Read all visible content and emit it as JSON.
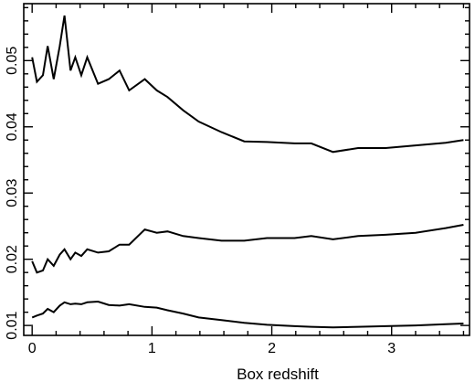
{
  "chart_data": {
    "type": "line",
    "title": "",
    "xlabel": "Box redshift",
    "ylabel": "",
    "xlim": [
      -0.07,
      3.65
    ],
    "ylim": [
      0.0085,
      0.0586
    ],
    "grid": false,
    "x_ticks": [
      0,
      1,
      2,
      3
    ],
    "x_tick_labels": [
      "0",
      "1",
      "2",
      "3"
    ],
    "x_minor_ticks": [
      0.2,
      0.4,
      0.6,
      0.8,
      1.2,
      1.4,
      1.6,
      1.8,
      2.2,
      2.4,
      2.6,
      2.8,
      3.2,
      3.4,
      3.6
    ],
    "y_ticks": [
      0.01,
      0.02,
      0.03,
      0.04,
      0.05
    ],
    "y_tick_labels": [
      "0.01",
      "0.02",
      "0.03",
      "0.04",
      "0.05"
    ],
    "y_minor_ticks": [
      0.012,
      0.014,
      0.016,
      0.018,
      0.022,
      0.024,
      0.026,
      0.028,
      0.032,
      0.034,
      0.036,
      0.038,
      0.042,
      0.044,
      0.046,
      0.048,
      0.052,
      0.054,
      0.056,
      0.058
    ],
    "series": [
      {
        "color": "#000000",
        "x": [
          0.0,
          0.04,
          0.09,
          0.13,
          0.18,
          0.23,
          0.27,
          0.32,
          0.36,
          0.41,
          0.46,
          0.55,
          0.64,
          0.73,
          0.81,
          0.94,
          1.04,
          1.13,
          1.26,
          1.39,
          1.58,
          1.77,
          1.96,
          2.19,
          2.33,
          2.51,
          2.72,
          2.95,
          3.2,
          3.45,
          3.6
        ],
        "y": [
          0.0505,
          0.0468,
          0.0478,
          0.0522,
          0.0472,
          0.0522,
          0.0568,
          0.0485,
          0.0505,
          0.0478,
          0.0505,
          0.0465,
          0.0472,
          0.0485,
          0.0455,
          0.0472,
          0.0455,
          0.0445,
          0.0425,
          0.0408,
          0.0392,
          0.0378,
          0.0377,
          0.0375,
          0.0375,
          0.0362,
          0.0368,
          0.0368,
          0.0372,
          0.0376,
          0.038
        ]
      },
      {
        "color": "#000000",
        "x": [
          0.0,
          0.04,
          0.09,
          0.13,
          0.18,
          0.23,
          0.27,
          0.32,
          0.36,
          0.41,
          0.46,
          0.55,
          0.64,
          0.73,
          0.81,
          0.94,
          1.04,
          1.13,
          1.26,
          1.39,
          1.58,
          1.77,
          1.96,
          2.19,
          2.33,
          2.51,
          2.72,
          2.95,
          3.2,
          3.45,
          3.6
        ],
        "y": [
          0.0197,
          0.018,
          0.0183,
          0.02,
          0.019,
          0.0207,
          0.0215,
          0.02,
          0.021,
          0.0205,
          0.0215,
          0.021,
          0.0212,
          0.0222,
          0.0222,
          0.0245,
          0.024,
          0.0242,
          0.0235,
          0.0232,
          0.0228,
          0.0228,
          0.0232,
          0.0232,
          0.0235,
          0.023,
          0.0235,
          0.0237,
          0.024,
          0.0247,
          0.0252
        ]
      },
      {
        "color": "#000000",
        "x": [
          0.0,
          0.04,
          0.09,
          0.13,
          0.18,
          0.23,
          0.27,
          0.32,
          0.36,
          0.41,
          0.46,
          0.55,
          0.64,
          0.73,
          0.81,
          0.94,
          1.04,
          1.13,
          1.26,
          1.39,
          1.58,
          1.77,
          1.96,
          2.19,
          2.33,
          2.51,
          2.72,
          2.95,
          3.2,
          3.45,
          3.6
        ],
        "y": [
          0.0112,
          0.0115,
          0.0118,
          0.0125,
          0.012,
          0.013,
          0.0135,
          0.0132,
          0.0133,
          0.0132,
          0.0135,
          0.0136,
          0.0131,
          0.013,
          0.0132,
          0.0128,
          0.0127,
          0.0123,
          0.0118,
          0.0112,
          0.0108,
          0.0104,
          0.0101,
          0.0099,
          0.0098,
          0.0097,
          0.0098,
          0.0099,
          0.01,
          0.0102,
          0.0103
        ]
      }
    ]
  }
}
